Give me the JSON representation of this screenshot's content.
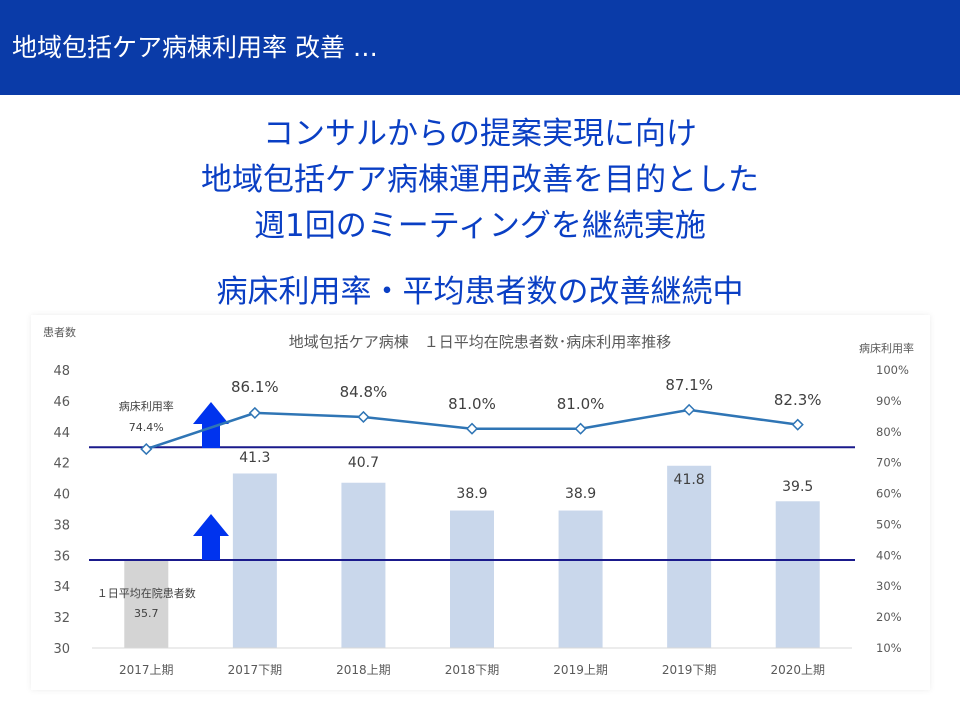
{
  "header": {
    "title": "地域包括ケア病棟利用率 改善 …"
  },
  "message": {
    "lines": [
      "コンサルからの提案実現に向け",
      "地域包括ケア病棟運用改善を目的とした",
      "週1回のミーティングを継続実施"
    ],
    "highlight": "病床利用率・平均患者数の改善継続中"
  },
  "colors": {
    "header_bg": "#0a3ba8",
    "accent_text": "#0a3fc4",
    "bar": "#c9d7eb",
    "bar_first": "#d4d4d4",
    "line": "#2f75b5",
    "arrow": "#0033ee",
    "reference_line": "#1a1a8c"
  },
  "chart_data": {
    "type": "bar",
    "title": "地域包括ケア病棟　１日平均在院患者数･病床利用率推移",
    "ylabel": "患者数",
    "y2label": "病床利用率",
    "categories": [
      "2017上期",
      "2017下期",
      "2018上期",
      "2018下期",
      "2019上期",
      "2019下期",
      "2020上期"
    ],
    "ylim": [
      30,
      48
    ],
    "yticks": [
      30,
      32,
      34,
      36,
      38,
      40,
      42,
      44,
      46,
      48
    ],
    "y2lim": [
      10,
      100
    ],
    "y2ticks": [
      "10%",
      "20%",
      "30%",
      "40%",
      "50%",
      "60%",
      "70%",
      "80%",
      "90%",
      "100%"
    ],
    "series": [
      {
        "name": "１日平均在院患者数",
        "type": "bar",
        "axis": "left",
        "values": [
          35.7,
          41.3,
          40.7,
          38.9,
          38.9,
          41.8,
          39.5
        ],
        "labels": [
          "35.7",
          "41.3",
          "40.7",
          "38.9",
          "38.9",
          "41.8",
          "39.5"
        ]
      },
      {
        "name": "病床利用率",
        "type": "line",
        "axis": "right",
        "values": [
          74.4,
          86.1,
          84.8,
          81.0,
          81.0,
          87.1,
          82.3
        ],
        "labels": [
          "74.4%",
          "86.1%",
          "84.8%",
          "81.0%",
          "81.0%",
          "87.1%",
          "82.3%"
        ]
      }
    ],
    "reference_lines": [
      {
        "axis": "left",
        "value": 43.0
      },
      {
        "axis": "left",
        "value": 35.7
      }
    ],
    "grid": false,
    "legend": "none"
  }
}
